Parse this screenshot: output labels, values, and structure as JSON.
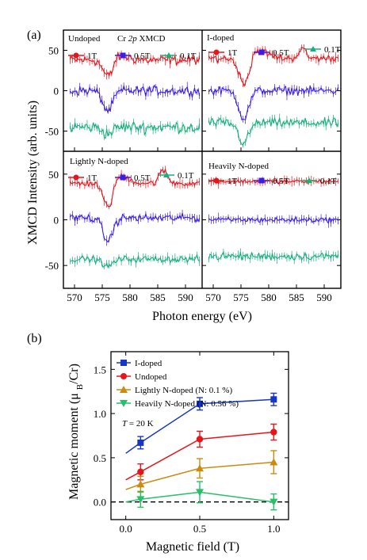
{
  "panel_a": {
    "label": "(a)",
    "ylabel": "XMCD Intensity (arb. units)",
    "xlabel": "Photon energy (eV)",
    "x_ticks": [
      "570",
      "575",
      "580",
      "585",
      "590"
    ],
    "y_ticks": [
      "50",
      "0",
      "-50"
    ],
    "legend_1T": "1T",
    "legend_05T": "0.5T",
    "legend_01T": "0.1T",
    "panels": [
      {
        "title": "Undoped",
        "extra": "Cr 2p XMCD"
      },
      {
        "title": "I-doped"
      },
      {
        "title": "Lightly N-doped"
      },
      {
        "title": "Heavily N-doped"
      }
    ]
  },
  "panel_b": {
    "label": "(b)",
    "xlabel": "Magnetic field (T)",
    "ylabel": "Magnetic moment (μB/Cr)",
    "x_ticks": [
      "0.0",
      "0.5",
      "1.0"
    ],
    "y_ticks": [
      "0.0",
      "0.5",
      "1.0",
      "1.5"
    ],
    "annotation": "T = 20 K"
  },
  "colors": {
    "red": "#e8141b",
    "blue": "#3a1ee6",
    "green": "#16b07a",
    "iblue": "#1537c8",
    "orange": "#cc8a10",
    "green2": "#27c068"
  },
  "chart_data": [
    {
      "type": "line",
      "title": "",
      "xlabel": "Photon energy (eV)",
      "ylabel": "XMCD Intensity (arb. units)",
      "xlim": [
        568,
        593
      ],
      "ylim": [
        -75,
        75
      ],
      "panels": [
        {
          "name": "Undoped",
          "series": [
            {
              "name": "1T",
              "baseline": 38,
              "dip": -20,
              "dip_center": 576,
              "step": 5,
              "noise": 8
            },
            {
              "name": "0.5T",
              "baseline": 0,
              "dip": -25,
              "dip_center": 576,
              "step": 0,
              "noise": 8
            },
            {
              "name": "0.1T",
              "baseline": -45,
              "dip": -8,
              "dip_center": 576,
              "step": 0,
              "noise": 10
            }
          ]
        },
        {
          "name": "I-doped",
          "series": [
            {
              "name": "1T",
              "baseline": 40,
              "dip": -30,
              "dip_center": 575.5,
              "step": 10,
              "noise": 6
            },
            {
              "name": "0.5T",
              "baseline": 0,
              "dip": -35,
              "dip_center": 575.5,
              "step": 0,
              "noise": 7
            },
            {
              "name": "0.1T",
              "baseline": -40,
              "dip": -25,
              "dip_center": 575.5,
              "step": 0,
              "noise": 8
            }
          ]
        },
        {
          "name": "Lightly N-doped",
          "series": [
            {
              "name": "1T",
              "baseline": 40,
              "dip": -25,
              "dip_center": 576,
              "step": 8,
              "noise": 5
            },
            {
              "name": "0.5T",
              "baseline": 2,
              "dip": -25,
              "dip_center": 576,
              "step": 0,
              "noise": 6
            },
            {
              "name": "0.1T",
              "baseline": -43,
              "dip": -8,
              "dip_center": 576,
              "step": 0,
              "noise": 5
            }
          ]
        },
        {
          "name": "Heavily N-doped",
          "series": [
            {
              "name": "1T",
              "baseline": 42,
              "dip": 0,
              "dip_center": 576,
              "step": 0,
              "noise": 3
            },
            {
              "name": "0.5T",
              "baseline": 0,
              "dip": 0,
              "dip_center": 576,
              "step": 0,
              "noise": 4
            },
            {
              "name": "0.1T",
              "baseline": -40,
              "dip": 0,
              "dip_center": 576,
              "step": 0,
              "noise": 6
            }
          ]
        }
      ]
    },
    {
      "type": "line",
      "title": "",
      "xlabel": "Magnetic field (T)",
      "ylabel": "Magnetic moment (μB/Cr)",
      "xlim": [
        -0.1,
        1.1
      ],
      "ylim": [
        -0.2,
        1.7
      ],
      "reference_line": 0,
      "series": [
        {
          "name": "I-doped",
          "x": [
            0.1,
            0.5,
            1.0
          ],
          "y": [
            0.67,
            1.11,
            1.16
          ],
          "err": [
            0.07,
            0.07,
            0.07
          ],
          "fit": [
            [
              0.0,
              0.55
            ],
            [
              0.1,
              0.67
            ],
            [
              0.5,
              1.11
            ],
            [
              1.0,
              1.16
            ]
          ]
        },
        {
          "name": "Undoped",
          "x": [
            0.1,
            0.5,
            1.0
          ],
          "y": [
            0.34,
            0.71,
            0.79
          ],
          "err": [
            0.09,
            0.09,
            0.09
          ],
          "fit": [
            [
              0.0,
              0.25
            ],
            [
              0.1,
              0.34
            ],
            [
              0.5,
              0.71
            ],
            [
              1.0,
              0.79
            ]
          ]
        },
        {
          "name": "Lightly N-doped (N: 0.1 %)",
          "x": [
            0.1,
            0.5,
            1.0
          ],
          "y": [
            0.2,
            0.38,
            0.45
          ],
          "err": [
            0.09,
            0.11,
            0.13
          ],
          "fit": [
            [
              0.0,
              0.14
            ],
            [
              0.1,
              0.2
            ],
            [
              0.5,
              0.38
            ],
            [
              1.0,
              0.45
            ]
          ]
        },
        {
          "name": "Heavily N-doped (N: 0.56 %)",
          "x": [
            0.1,
            0.5,
            1.0
          ],
          "y": [
            0.03,
            0.11,
            0.0
          ],
          "err": [
            0.09,
            0.12,
            0.09
          ],
          "fit": [
            [
              0.0,
              0.0
            ],
            [
              0.1,
              0.03
            ],
            [
              0.5,
              0.11
            ],
            [
              1.0,
              0.0
            ]
          ]
        }
      ]
    }
  ]
}
